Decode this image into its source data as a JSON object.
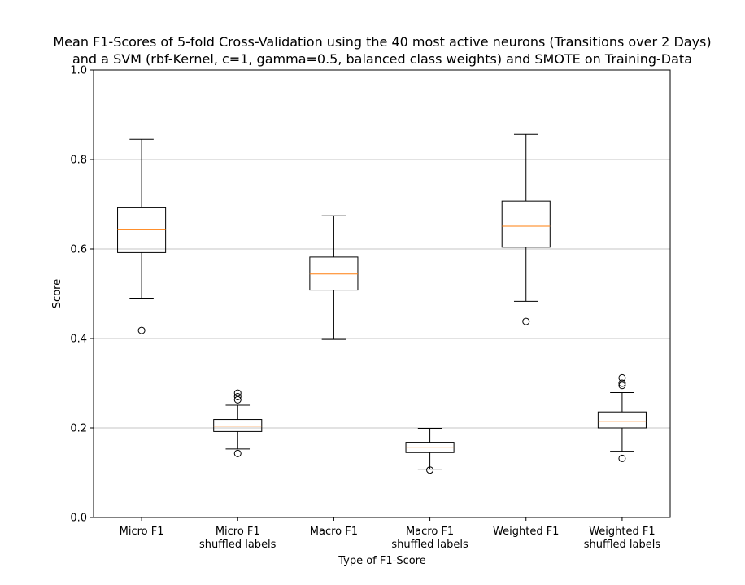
{
  "chart_data": {
    "type": "box",
    "title_lines": [
      "Mean F1-Scores of 5-fold Cross-Validation using the 40 most active neurons (Transitions over 2 Days)",
      "and a SVM (rbf-Kernel, c=1, gamma=0.5, balanced class weights) and SMOTE on Training-Data"
    ],
    "xlabel": "Type of F1-Score",
    "ylabel": "Score",
    "ylim": [
      0,
      1.0
    ],
    "yticks": [
      0.0,
      0.2,
      0.4,
      0.6,
      0.8,
      1.0
    ],
    "ytick_labels": [
      "0.0",
      "0.2",
      "0.4",
      "0.6",
      "0.8",
      "1.0"
    ],
    "grid": "horizontal",
    "colors": {
      "box": "#000000",
      "median": "#ff7f0e",
      "grid": "#b0b0b0"
    },
    "categories": [
      [
        "Micro F1"
      ],
      [
        "Micro F1",
        "shuffled labels"
      ],
      [
        "Macro F1"
      ],
      [
        "Macro F1",
        "shuffled labels"
      ],
      [
        "Weighted F1"
      ],
      [
        "Weighted F1",
        "shuffled labels"
      ]
    ],
    "boxes": [
      {
        "whislo": 0.49,
        "q1": 0.592,
        "med": 0.643,
        "q3": 0.692,
        "whishi": 0.845,
        "fliers": [
          0.418
        ]
      },
      {
        "whislo": 0.153,
        "q1": 0.192,
        "med": 0.204,
        "q3": 0.219,
        "whishi": 0.251,
        "fliers": [
          0.143,
          0.263,
          0.27,
          0.278
        ]
      },
      {
        "whislo": 0.398,
        "q1": 0.508,
        "med": 0.544,
        "q3": 0.582,
        "whishi": 0.674,
        "fliers": []
      },
      {
        "whislo": 0.108,
        "q1": 0.145,
        "med": 0.157,
        "q3": 0.168,
        "whishi": 0.199,
        "fliers": [
          0.106
        ]
      },
      {
        "whislo": 0.483,
        "q1": 0.604,
        "med": 0.651,
        "q3": 0.707,
        "whishi": 0.856,
        "fliers": [
          0.438
        ]
      },
      {
        "whislo": 0.148,
        "q1": 0.2,
        "med": 0.215,
        "q3": 0.236,
        "whishi": 0.279,
        "fliers": [
          0.132,
          0.295,
          0.3,
          0.312
        ]
      }
    ]
  }
}
